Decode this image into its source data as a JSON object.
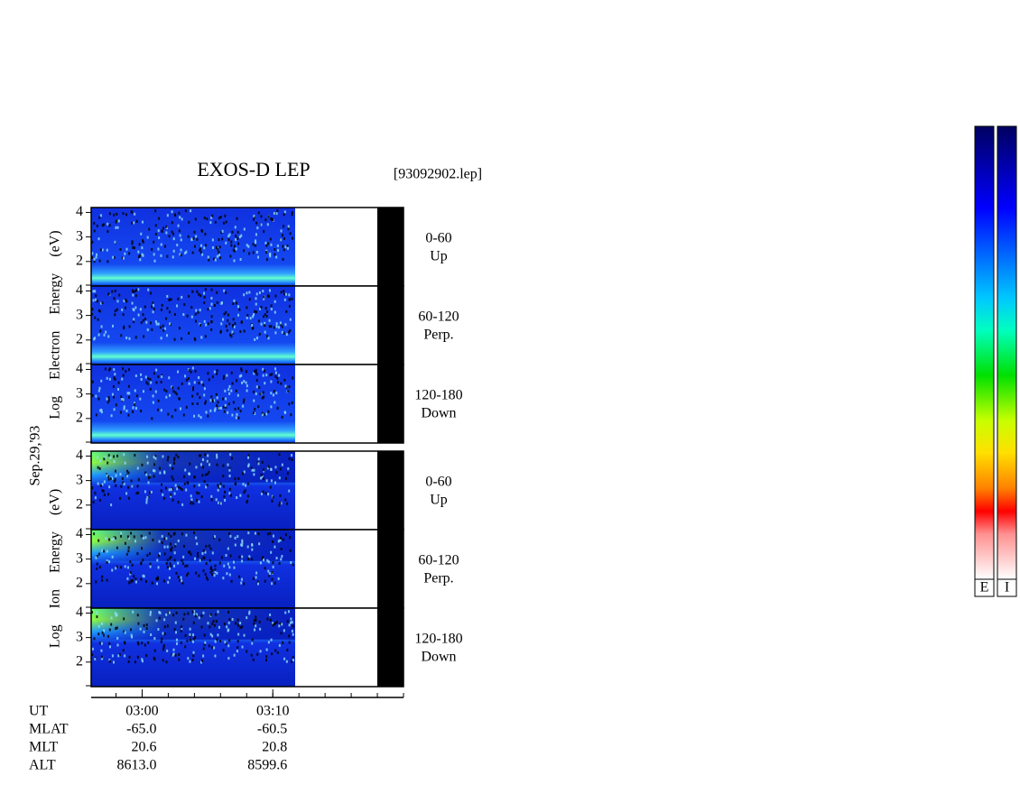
{
  "chart_data": {
    "type": "spectrogram",
    "title": "EXOS-D LEP",
    "file": "[93092902.lep]",
    "date_label": "Sep.29,'93",
    "xlim": [
      176.1,
      200
    ],
    "xticks": [
      {
        "value": 180,
        "label": "03:00"
      },
      {
        "value": 190,
        "label": "03:10"
      }
    ],
    "x_row_label": "UT",
    "groups": [
      {
        "axis_label": "Log Electron Energy (eV)",
        "species": "electron",
        "panels": [
          {
            "ylim": [
              1,
              4.2
            ],
            "yticks": [
              2,
              3,
              4
            ],
            "pitch": "0-60",
            "direction": "Up"
          },
          {
            "ylim": [
              1,
              4.2
            ],
            "yticks": [
              2,
              3,
              4
            ],
            "pitch": "60-120",
            "direction": "Perp."
          },
          {
            "ylim": [
              1,
              4.2
            ],
            "yticks": [
              2,
              3,
              4
            ],
            "pitch": "120-180",
            "direction": "Down"
          }
        ]
      },
      {
        "axis_label": "Log Ion Energy (eV)",
        "species": "ion",
        "panels": [
          {
            "ylim": [
              1,
              4.2
            ],
            "yticks": [
              2,
              3,
              4
            ],
            "pitch": "0-60",
            "direction": "Up"
          },
          {
            "ylim": [
              1,
              4.2
            ],
            "yticks": [
              2,
              3,
              4
            ],
            "pitch": "60-120",
            "direction": "Perp."
          },
          {
            "ylim": [
              1,
              4.2
            ],
            "yticks": [
              2,
              3,
              4
            ],
            "pitch": "120-180",
            "direction": "Down"
          }
        ]
      }
    ],
    "ephemeris": [
      {
        "label": "MLAT",
        "values": [
          "-65.0",
          "-60.5"
        ]
      },
      {
        "label": "MLT",
        "values": [
          "20.6",
          "20.8"
        ]
      },
      {
        "label": "ALT",
        "values": [
          "8613.0",
          "8599.6"
        ]
      }
    ],
    "colorbars": [
      "E",
      "I"
    ]
  }
}
